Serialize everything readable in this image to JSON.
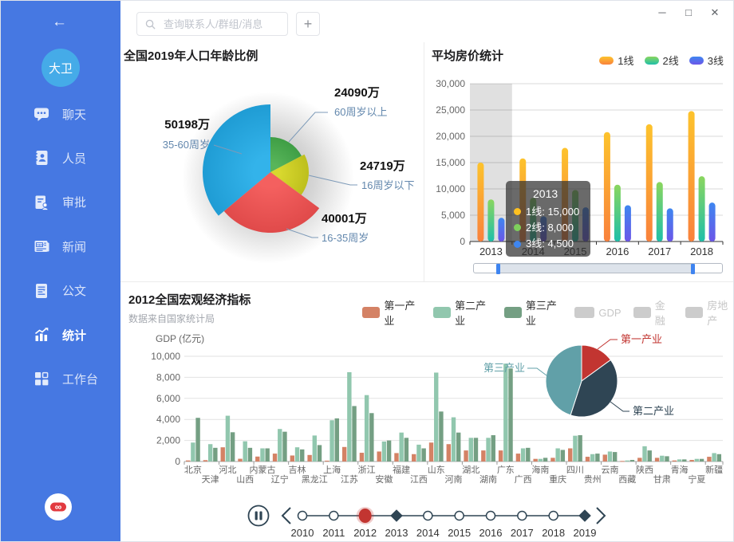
{
  "window_controls": {
    "minimize": "─",
    "maximize": "□",
    "close": "✕"
  },
  "sidebar": {
    "back_icon": "←",
    "avatar_text": "大卫",
    "active_label": "统计",
    "logo_icon": "infinity-logo-icon",
    "items": [
      {
        "icon": "chat-icon",
        "label": "聊天"
      },
      {
        "icon": "contacts-icon",
        "label": "人员"
      },
      {
        "icon": "approval-icon",
        "label": "审批"
      },
      {
        "icon": "news-icon",
        "label": "新闻"
      },
      {
        "icon": "document-icon",
        "label": "公文"
      },
      {
        "icon": "stats-icon",
        "label": "统计"
      },
      {
        "icon": "workbench-icon",
        "label": "工作台"
      }
    ]
  },
  "topbar": {
    "search_placeholder": "查询联系人/群组/消息",
    "add_label": "+",
    "search_icon": "search-icon"
  },
  "colors": {
    "sidebar": "#4678e2",
    "avatar": "#45abe8",
    "timeline_line": "#2f4554",
    "timeline_current": "#c23531"
  },
  "chart_data": [
    {
      "id": "population_pie",
      "type": "pie",
      "style": "rose",
      "title": "全国2019年人口年龄比例",
      "slices": [
        {
          "label": "60周岁以上",
          "value": 24090,
          "value_label": "24090万",
          "color": "#58b55a",
          "color_edge": "#3f9e45"
        },
        {
          "label": "16周岁以下",
          "value": 24719,
          "value_label": "24719万",
          "color": "#d8d82e",
          "color_edge": "#bdbf1d"
        },
        {
          "label": "16-35周岁",
          "value": 40001,
          "value_label": "40001万",
          "color": "#f4605f",
          "color_edge": "#e04a4a"
        },
        {
          "label": "35-60周岁",
          "value": 50198,
          "value_label": "50198万",
          "color": "#33b3ea",
          "color_edge": "#1f9cd4"
        }
      ]
    },
    {
      "id": "housing_bar",
      "type": "bar",
      "title": "平均房价统计",
      "categories": [
        "2013",
        "2014",
        "2015",
        "2016",
        "2017",
        "2018"
      ],
      "series": [
        {
          "name": "1线",
          "values": [
            15000,
            15800,
            17800,
            20800,
            22300,
            24800
          ],
          "color_top": "#fdc32c",
          "color_bottom": "#f9813c",
          "dot": "#fdc020"
        },
        {
          "name": "2线",
          "values": [
            8000,
            8300,
            9800,
            10800,
            11300,
            12400
          ],
          "color_top": "#8ad65e",
          "color_bottom": "#1fbfa9",
          "dot": "#7ed05c"
        },
        {
          "name": "3线",
          "values": [
            4500,
            4800,
            6500,
            6900,
            6300,
            7400
          ],
          "color_top": "#3e86f0",
          "color_bottom": "#6b56e8",
          "dot": "#3e86f0"
        }
      ],
      "ylim": [
        0,
        30000
      ],
      "ytick_step": 5000,
      "grid": true,
      "legend_position": "top-right",
      "datazoom": true,
      "tooltip": {
        "highlight_category": "2013",
        "title": "2013",
        "rows": [
          {
            "name": "1线",
            "value": "15,000"
          },
          {
            "name": "2线",
            "value": "8,000"
          },
          {
            "name": "3线",
            "value": "4,500"
          }
        ]
      }
    },
    {
      "id": "gdp_bar",
      "type": "bar",
      "title": "2012全国宏观经济指标",
      "subtitle": "数据来自国家统计局",
      "ylabel": "GDP (亿元)",
      "legend": [
        "第一产业",
        "第二产业",
        "第三产业",
        "GDP",
        "金融",
        "房地产"
      ],
      "legend_disabled": [
        "GDP",
        "金融",
        "房地产"
      ],
      "legend_colors": [
        "#d48265",
        "#91c7ae",
        "#749f83",
        "#cccccc",
        "#cccccc",
        "#cccccc"
      ],
      "categories": [
        "北京",
        "天津",
        "河北",
        "山西",
        "内蒙古",
        "辽宁",
        "吉林",
        "黑龙江",
        "上海",
        "江苏",
        "浙江",
        "安徽",
        "福建",
        "江西",
        "山东",
        "河南",
        "湖北",
        "湖南",
        "广东",
        "广西",
        "海南",
        "重庆",
        "四川",
        "贵州",
        "云南",
        "西藏",
        "陕西",
        "甘肃",
        "青海",
        "宁夏",
        "新疆"
      ],
      "series": [
        {
          "name": "第一产业",
          "color": "#d48265",
          "values": [
            100,
            130,
            1350,
            260,
            470,
            750,
            570,
            620,
            80,
            1380,
            830,
            950,
            800,
            700,
            1800,
            1650,
            1050,
            1050,
            1050,
            750,
            250,
            350,
            1250,
            450,
            650,
            50,
            350,
            350,
            100,
            150,
            450
          ]
        },
        {
          "name": "第二产业",
          "color": "#91c7ae",
          "values": [
            1800,
            1650,
            4350,
            1920,
            1250,
            3090,
            1350,
            2470,
            3920,
            8490,
            6310,
            1900,
            2750,
            1600,
            8450,
            4200,
            2250,
            2250,
            9300,
            1250,
            250,
            1250,
            2450,
            700,
            950,
            100,
            1450,
            550,
            200,
            250,
            800
          ]
        },
        {
          "name": "第三产业",
          "color": "#749f83",
          "values": [
            4150,
            1300,
            2780,
            1300,
            1250,
            2830,
            1150,
            1560,
            4100,
            5270,
            4600,
            2000,
            2250,
            1250,
            4750,
            2750,
            2250,
            2500,
            8850,
            1300,
            350,
            1100,
            2500,
            750,
            900,
            150,
            1050,
            500,
            200,
            250,
            700
          ]
        }
      ],
      "ylim": [
        0,
        10000
      ],
      "ytick_step": 2000,
      "grid": true
    },
    {
      "id": "industry_pie",
      "type": "pie",
      "slices": [
        {
          "label": "第一产业",
          "value": 15,
          "color": "#c23531"
        },
        {
          "label": "第二产业",
          "value": 40,
          "color": "#2f4554"
        },
        {
          "label": "第三产业",
          "value": 45,
          "color": "#61a0a8"
        }
      ]
    },
    {
      "id": "year_timeline",
      "type": "timeline",
      "years": [
        "2010",
        "2011",
        "2012",
        "2013",
        "2014",
        "2015",
        "2016",
        "2017",
        "2018",
        "2019"
      ],
      "current": "2012",
      "diamond_years": [
        "2013",
        "2019"
      ],
      "pause_icon": "pause-icon",
      "prev_icon": "chevron-left-icon",
      "next_icon": "chevron-right-icon"
    }
  ]
}
